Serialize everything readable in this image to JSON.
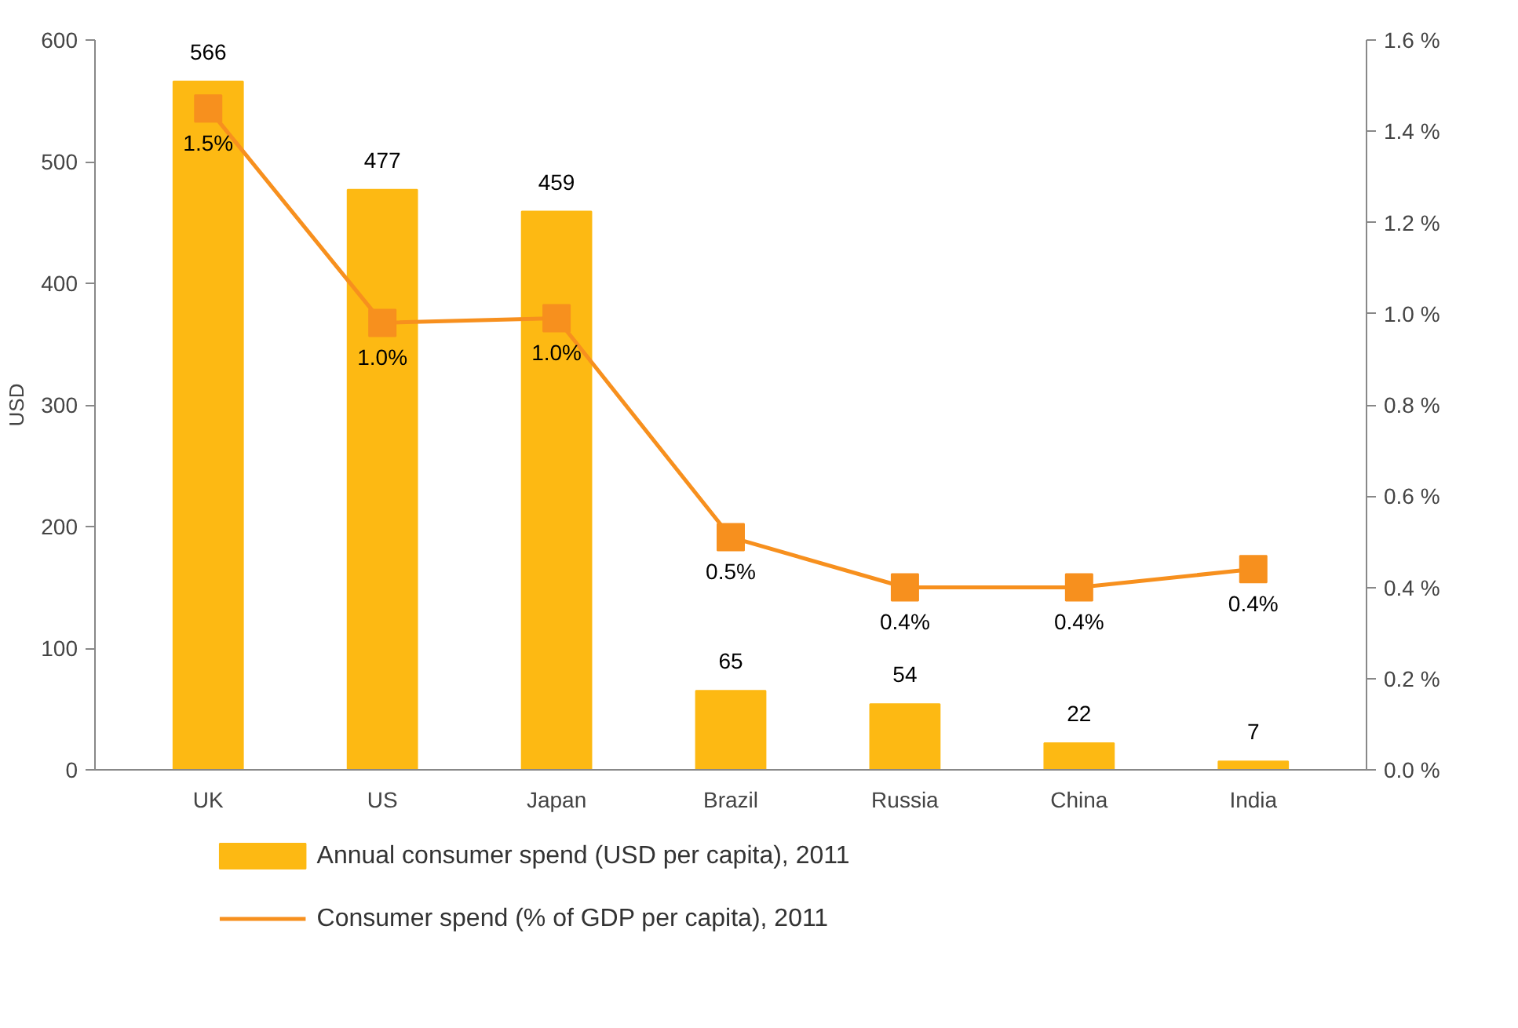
{
  "chart_data": {
    "type": "bar",
    "ylabel": "USD",
    "categories": [
      "UK",
      "US",
      "Japan",
      "Brazil",
      "Russia",
      "China",
      "India"
    ],
    "series": [
      {
        "name": "Annual consumer spend (USD per capita), 2011",
        "color": "#fdb913",
        "values": [
          566,
          477,
          459,
          65,
          54,
          22,
          7
        ],
        "value_labels": [
          "566",
          "477",
          "459",
          "65",
          "54",
          "22",
          "7"
        ]
      },
      {
        "name": "Consumer spend (% of GDP per capita), 2011",
        "type": "line",
        "axis": "y2",
        "color": "#f7901e",
        "marker": "square",
        "values": [
          1.45,
          0.98,
          0.99,
          0.51,
          0.4,
          0.4,
          0.44
        ],
        "value_labels": [
          "1.5%",
          "1.0%",
          "1.0%",
          "0.5%",
          "0.4%",
          "0.4%",
          "0.4%"
        ]
      }
    ],
    "ylim": [
      0,
      600
    ],
    "yticks": [
      0,
      100,
      200,
      300,
      400,
      500,
      600
    ],
    "y2lim": [
      0,
      1.6
    ],
    "y2ticks": [
      {
        "value": 0,
        "label": "0.0 %"
      },
      {
        "value": 0.2,
        "label": "0.2 %"
      },
      {
        "value": 0.4,
        "label": "0.4 %"
      },
      {
        "value": 0.6,
        "label": "0.6 %"
      },
      {
        "value": 0.8,
        "label": "0.8 %"
      },
      {
        "value": 1.0,
        "label": "1.0 %"
      },
      {
        "value": 1.2,
        "label": "1.2 %"
      },
      {
        "value": 1.4,
        "label": "1.4 %"
      },
      {
        "value": 1.6,
        "label": "1.6 %"
      }
    ],
    "grid": false,
    "legend": "bottom"
  }
}
